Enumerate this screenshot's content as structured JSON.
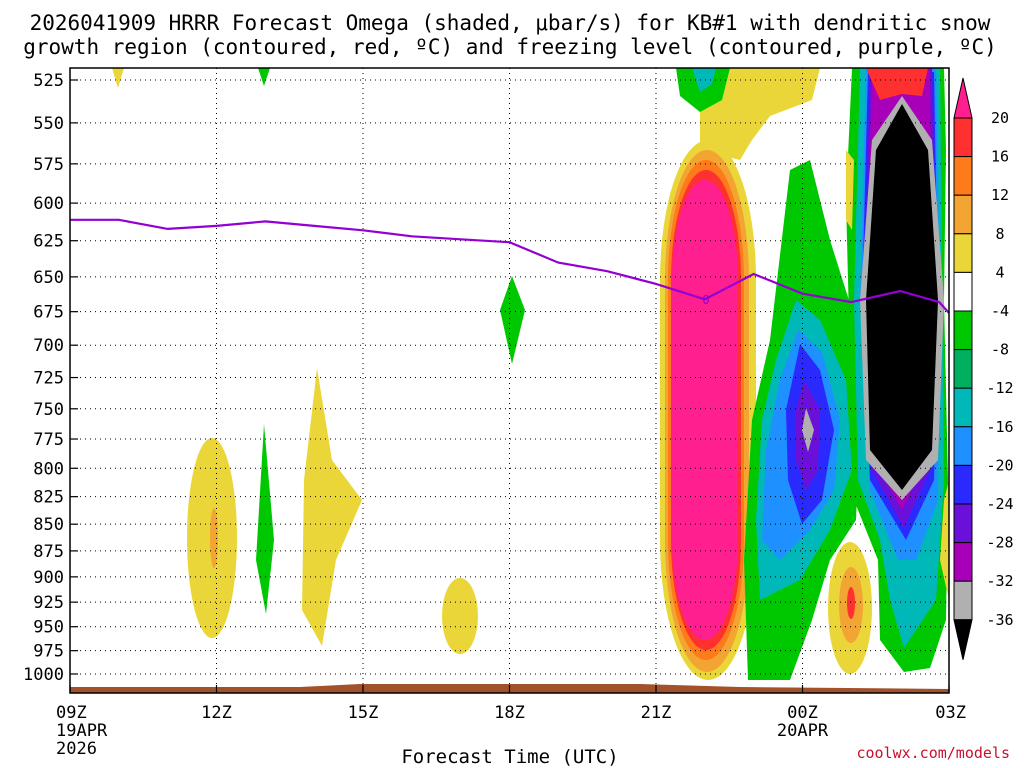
{
  "chart_data": {
    "type": "heatmap",
    "title_line1": "2026041909 HRRR Forecast Omega (shaded, μbar/s) for KB#1 with dendritic snow",
    "title_line2": "growth region (contoured, red, ºC) and freezing level (contoured, purple, ºC)",
    "xlabel": "Forecast Time (UTC)",
    "credit": "coolwx.com/models",
    "x_ticks": [
      {
        "hour": 0,
        "label": "09Z",
        "sub1": "19APR",
        "sub2": "2026"
      },
      {
        "hour": 3,
        "label": "12Z",
        "sub1": "",
        "sub2": ""
      },
      {
        "hour": 6,
        "label": "15Z",
        "sub1": "",
        "sub2": ""
      },
      {
        "hour": 9,
        "label": "18Z",
        "sub1": "",
        "sub2": ""
      },
      {
        "hour": 12,
        "label": "21Z",
        "sub1": "",
        "sub2": ""
      },
      {
        "hour": 15,
        "label": "00Z",
        "sub1": "20APR",
        "sub2": ""
      },
      {
        "hour": 18,
        "label": "03Z",
        "sub1": "",
        "sub2": ""
      }
    ],
    "y_ticks": [
      "525",
      "550",
      "575",
      "600",
      "625",
      "650",
      "675",
      "700",
      "725",
      "750",
      "775",
      "800",
      "825",
      "850",
      "875",
      "900",
      "925",
      "950",
      "975",
      "1000"
    ],
    "colorbar": {
      "labels": [
        "20",
        "16",
        "12",
        "8",
        "4",
        "-4",
        "-8",
        "-12",
        "-16",
        "-20",
        "-24",
        "-28",
        "-32",
        "-36"
      ],
      "colors": [
        "#ff1f8f",
        "#ff3030",
        "#ff7a1a",
        "#f2a533",
        "#ebd63a",
        "#ffffff",
        "#00c800",
        "#00b060",
        "#00b8b8",
        "#1e90ff",
        "#2a2aff",
        "#6a10d8",
        "#a800b8",
        "#b0b0b0",
        "#000000"
      ]
    },
    "freezing_level": {
      "color": "#9400d3",
      "hours": [
        0,
        1,
        2,
        3,
        4,
        5,
        6,
        7,
        8,
        9,
        10,
        11,
        12,
        13,
        14,
        15,
        16,
        17,
        17.8,
        18
      ],
      "pressure_mb": [
        611,
        611,
        617,
        615,
        612,
        615,
        618,
        622,
        624,
        626,
        640,
        646,
        655,
        666,
        648,
        662,
        668,
        660,
        668,
        676
      ]
    },
    "omega_features": [
      {
        "name": "updraft-column-21z",
        "hour_center": 13.0,
        "p_top": 580,
        "p_bottom": 978,
        "peak_ubar_s": 20,
        "min_ubar_s": 4
      },
      {
        "name": "downdraft-core-02z",
        "hour_center": 17.0,
        "p_top": 545,
        "p_bottom": 835,
        "peak_ubar_s": -36
      },
      {
        "name": "weak-rise-12z",
        "hour_center": 3.0,
        "p_top": 770,
        "p_bottom": 965,
        "peak_ubar_s": 8
      },
      {
        "name": "weak-sink-13z",
        "hour_center": 4.0,
        "p_top": 760,
        "p_bottom": 935,
        "peak_ubar_s": -8
      },
      {
        "name": "weak-rise-14z",
        "hour_center": 5.1,
        "p_top": 735,
        "p_bottom": 965,
        "peak_ubar_s": 4
      },
      {
        "name": "weak-rise-17z",
        "hour_center": 7.5,
        "p_top": 905,
        "p_bottom": 975,
        "peak_ubar_s": 4
      },
      {
        "name": "weak-sink-18z",
        "hour_center": 9.0,
        "p_top": 650,
        "p_bottom": 710,
        "peak_ubar_s": -8
      },
      {
        "name": "rise-01z",
        "hour_center": 16.0,
        "p_top": 880,
        "p_bottom": 985,
        "peak_ubar_s": 12
      }
    ]
  }
}
